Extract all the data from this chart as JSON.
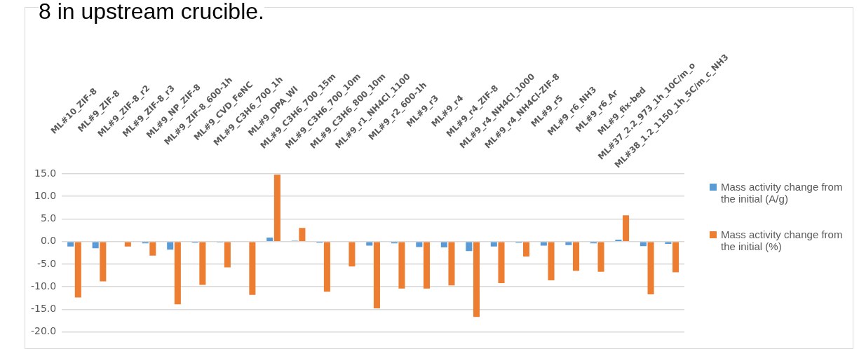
{
  "chart_data": {
    "type": "bar",
    "title": "8 in upstream crucible.",
    "categories": [
      "ML#10_ZIF-8",
      "ML#9_ZIF-8",
      "ML#9_ZIF-8_r2",
      "ML#9_ZIF-8_r3",
      "ML#9_NP_ZIF-8",
      "ML#9_ZIF-8_600-1h",
      "ML#9_CVD_FeNC",
      "ML#9_C3H6_700_1h",
      "ML#9_DPA_WI",
      "ML#9_C3H6_700_15m",
      "ML#9_C3H6_700_10m",
      "ML#9_C3H6_800_10m",
      "ML#9_r1_NH4Cl_1100",
      "ML#9_r2_600-1h",
      "ML#9_r3",
      "ML#9_r4",
      "ML#9_r4_ZIF-8",
      "ML#9_r4_NH4Cl_1000",
      "ML#9_r4_NH4Cl-ZIF-8",
      "ML#9_r5",
      "ML#9_r6_NH3",
      "ML#9_r6_Ar",
      "ML#9_fix-bed",
      "ML#37_2.2_973_1h_10C/m_o",
      "ML#38_1.2_1150_1h_5C/m_c_NH3"
    ],
    "series": [
      {
        "name": "Mass activity change from the initial (A/g)",
        "color": "#5b9bd5",
        "values": [
          -1.1,
          -1.5,
          null,
          -0.4,
          -1.8,
          -0.3,
          -0.2,
          null,
          0.9,
          0.2,
          -0.3,
          null,
          -0.9,
          -0.4,
          -1.2,
          -1.3,
          -2.1,
          -1.1,
          -0.3,
          -0.9,
          -0.8,
          -0.4,
          0.4,
          -1.0,
          -0.5
        ]
      },
      {
        "name": "Mass activity change from the initial (%)",
        "color": "#ed7d31",
        "values": [
          -12.4,
          -8.8,
          -1.1,
          -3.1,
          -13.9,
          -9.6,
          -5.7,
          -11.8,
          14.8,
          3.0,
          -11.1,
          -5.5,
          -14.8,
          -10.4,
          -10.4,
          -9.7,
          -16.7,
          -9.2,
          -3.3,
          -8.6,
          -6.5,
          -6.7,
          5.8,
          -11.7,
          -6.8
        ]
      }
    ],
    "ylim": [
      -20,
      15
    ],
    "yticks": [
      {
        "value": -20,
        "label": "-20.0"
      },
      {
        "value": -15,
        "label": "-15.0"
      },
      {
        "value": -10,
        "label": "-10.0"
      },
      {
        "value": -5,
        "label": "-5.0"
      },
      {
        "value": 0,
        "label": "0.0"
      },
      {
        "value": 5,
        "label": "5.0"
      },
      {
        "value": 10,
        "label": "10.0"
      },
      {
        "value": 15,
        "label": "15.0"
      }
    ],
    "grid": true,
    "legend": "right"
  }
}
